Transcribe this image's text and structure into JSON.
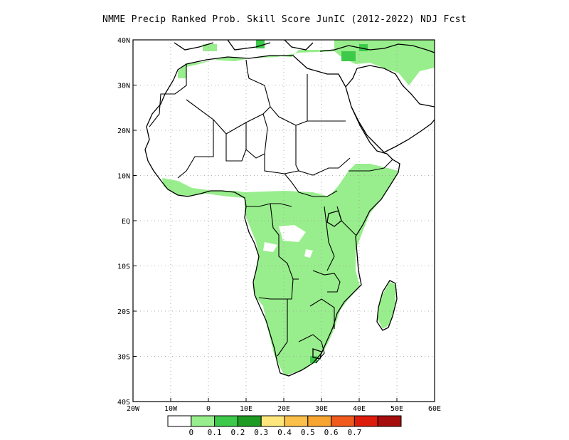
{
  "title": "NMME Precip Ranked Prob. Skill Score JunIC (2012-2022) NDJ Fcst",
  "axes": {
    "lat_labels": [
      "40N",
      "30N",
      "20N",
      "10N",
      "EQ",
      "10S",
      "20S",
      "30S",
      "40S"
    ],
    "lon_labels": [
      "20W",
      "10W",
      "0",
      "10E",
      "20E",
      "30E",
      "40E",
      "50E",
      "60E"
    ],
    "lon_range": [
      -20,
      60
    ],
    "lat_range": [
      -40,
      40
    ],
    "grid": "dotted"
  },
  "colorbar": {
    "colors": [
      "#ffffff",
      "#98ee8c",
      "#3dc94a",
      "#1e9b23",
      "#fde77c",
      "#fbc04a",
      "#f7a531",
      "#f05a1c",
      "#dd1c0c",
      "#a60d0d"
    ],
    "labels": [
      "0",
      "0.1",
      "0.2",
      "0.3",
      "0.4",
      "0.5",
      "0.6",
      "0.7"
    ]
  }
}
